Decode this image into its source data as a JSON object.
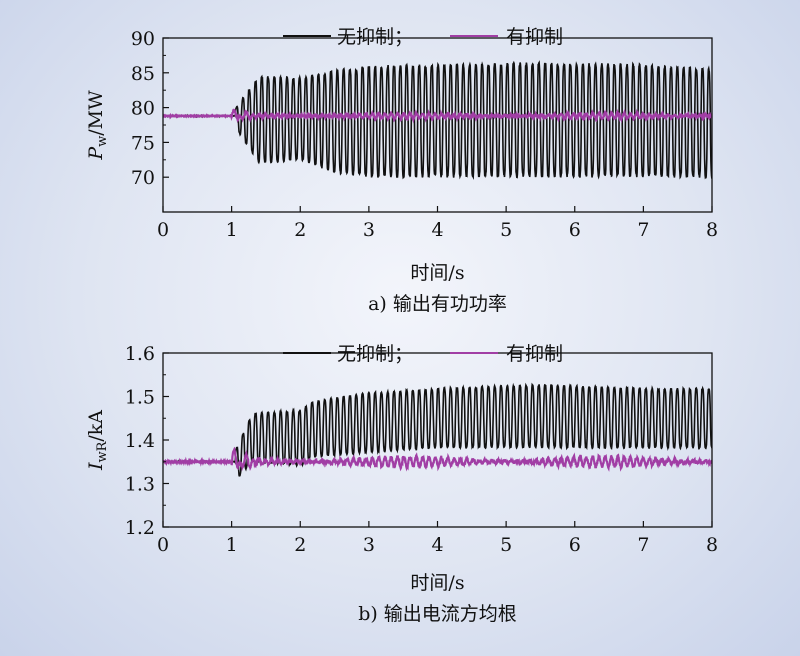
{
  "colors": {
    "no_control": "#111111",
    "with_control": "#a13ea5",
    "axis": "#111111"
  },
  "chart_data": [
    {
      "type": "line",
      "caption": "a) 输出有功功率",
      "xlabel": "时间/s",
      "ylabel_main": "P",
      "ylabel_sub": "w",
      "ylabel_unit": "/MW",
      "xlim": [
        0,
        8
      ],
      "ylim": [
        65,
        90
      ],
      "xticks": [
        0,
        1,
        2,
        3,
        4,
        5,
        6,
        7,
        8
      ],
      "yticks": [
        70,
        75,
        80,
        85,
        90
      ],
      "legend": [
        "无抑制；",
        "有抑制"
      ],
      "legend_position": "top",
      "series": [
        {
          "name": "无抑制；",
          "pre_disturbance_level": 78.8,
          "oscillation_start_s": 1.05,
          "envelope_time_s": [
            1.05,
            1.4,
            2.0,
            2.5,
            3.0,
            4.0,
            5.5,
            7.0,
            8.0
          ],
          "envelope_upper": [
            80,
            85.5,
            85.3,
            86.5,
            87.3,
            87.5,
            87.8,
            87.5,
            86.8
          ],
          "envelope_lower": [
            77,
            71,
            71.5,
            69.5,
            68.7,
            68.7,
            68.7,
            68.7,
            68.7
          ],
          "oscillation_freq_hz": 10.9
        },
        {
          "name": "有抑制",
          "pre_disturbance_level": 78.8,
          "steady_level": 78.8,
          "ripple_amplitude": 0.4
        }
      ]
    },
    {
      "type": "line",
      "caption": "b) 输出电流方均根",
      "xlabel": "时间/s",
      "ylabel_main": "I",
      "ylabel_sub": "wR",
      "ylabel_unit": "/kA",
      "xlim": [
        0,
        8
      ],
      "ylim": [
        1.2,
        1.6
      ],
      "xticks": [
        0,
        1,
        2,
        3,
        4,
        5,
        6,
        7,
        8
      ],
      "yticks": [
        1.2,
        1.3,
        1.4,
        1.5,
        1.6
      ],
      "legend": [
        "无抑制；",
        "有抑制"
      ],
      "legend_position": "top",
      "series": [
        {
          "name": "无抑制；",
          "pre_disturbance_level": 1.35,
          "oscillation_start_s": 1.05,
          "envelope_time_s": [
            1.05,
            1.3,
            2.0,
            2.2,
            3.0,
            4.0,
            5.5,
            7.0,
            8.0
          ],
          "envelope_upper": [
            1.38,
            1.47,
            1.48,
            1.5,
            1.52,
            1.53,
            1.54,
            1.53,
            1.53
          ],
          "envelope_lower": [
            1.3,
            1.34,
            1.33,
            1.35,
            1.36,
            1.37,
            1.37,
            1.37,
            1.37
          ],
          "oscillation_freq_hz": 10.9
        },
        {
          "name": "有抑制",
          "pre_disturbance_level": 1.35,
          "steady_level": 1.35,
          "ripple_amplitude": 0.012
        }
      ]
    }
  ]
}
